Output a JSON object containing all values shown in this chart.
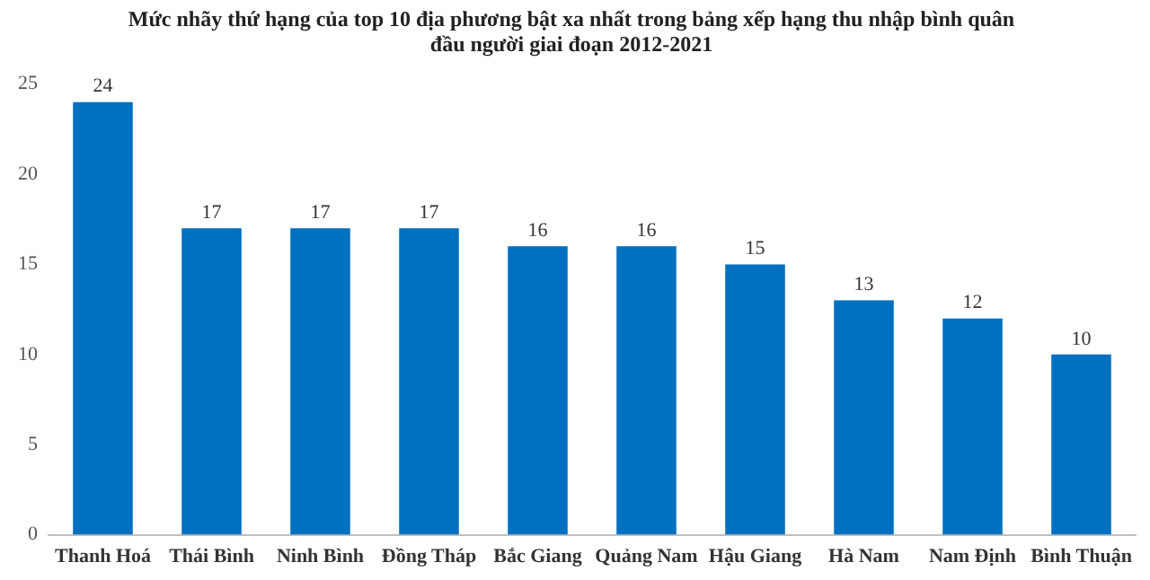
{
  "chart_data": {
    "type": "bar",
    "title": [
      "Mức nhãy thứ hạng của top 10 địa phương bật xa nhất trong bảng xếp hạng thu nhập bình quân",
      "đầu người giai đoạn 2012-2021"
    ],
    "categories": [
      "Thanh Hoá",
      "Thái Bình",
      "Ninh Bình",
      "Đồng Tháp",
      "Bắc Giang",
      "Quảng Nam",
      "Hậu Giang",
      "Hà Nam",
      "Nam Định",
      "Bình Thuận"
    ],
    "values": [
      24,
      17,
      17,
      17,
      16,
      16,
      15,
      13,
      12,
      10
    ],
    "color": "#0070c0",
    "ylim": [
      0,
      25
    ],
    "yticks": [
      0,
      5,
      10,
      15,
      20,
      25
    ],
    "grid": false,
    "data_labels": true,
    "legend": false
  }
}
